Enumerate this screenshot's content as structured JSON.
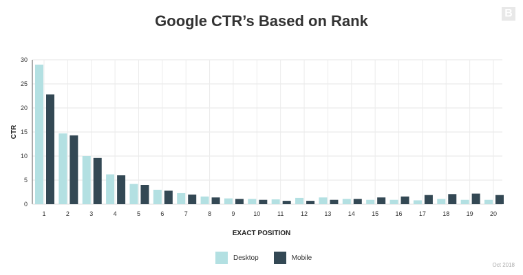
{
  "chart_data": {
    "type": "bar",
    "title": "Google CTR’s Based on Rank",
    "xlabel": "EXACT POSITION",
    "ylabel": "CTR",
    "ylim": [
      0,
      30
    ],
    "yticks": [
      "0",
      "5",
      "10",
      "15",
      "20",
      "25",
      "30"
    ],
    "categories": [
      "1",
      "2",
      "3",
      "4",
      "5",
      "6",
      "7",
      "8",
      "9",
      "10",
      "11",
      "12",
      "13",
      "14",
      "15",
      "16",
      "17",
      "18",
      "19",
      "20"
    ],
    "series": [
      {
        "name": "Desktop",
        "color": "#b3e0e2",
        "values": [
          29,
          14.7,
          10,
          6.2,
          4.2,
          3,
          2.3,
          1.6,
          1.2,
          1.1,
          1.0,
          1.3,
          1.4,
          1.1,
          0.9,
          0.9,
          0.8,
          1.1,
          0.9,
          0.9
        ]
      },
      {
        "name": "Mobile",
        "color": "#334854",
        "values": [
          22.8,
          14.3,
          9.6,
          6,
          4,
          2.8,
          2,
          1.4,
          1.1,
          0.9,
          0.7,
          0.7,
          0.9,
          1.1,
          1.4,
          1.6,
          1.9,
          2.1,
          2.2,
          1.9
        ]
      }
    ],
    "grid": true,
    "legend": "bottom-center"
  },
  "logo_text": "B",
  "footer": "Oct 2018"
}
